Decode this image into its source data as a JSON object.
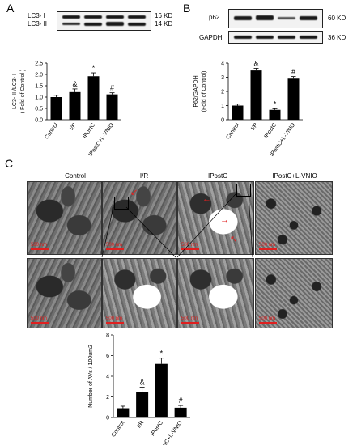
{
  "panels": {
    "a": "A",
    "b": "B",
    "c": "C"
  },
  "blot_a": {
    "rows": [
      "LC3- I",
      "LC3- II"
    ],
    "sizes": [
      "16 KD",
      "14 KD"
    ]
  },
  "blot_b": {
    "rows": [
      "p62",
      "GAPDH"
    ],
    "sizes": [
      "60 KD",
      "36 KD"
    ]
  },
  "em": {
    "columns": [
      "Control",
      "I/R",
      "IPostC",
      "IPostC+L-VNIO"
    ],
    "scale_label": "500 nm"
  },
  "chart_data": [
    {
      "id": "chart-a",
      "type": "bar",
      "categories": [
        "Control",
        "I/R",
        "IPostC",
        "IPostC+L-VNIO"
      ],
      "values": [
        1.0,
        1.22,
        1.92,
        1.12
      ],
      "errors": [
        0.08,
        0.14,
        0.15,
        0.07
      ],
      "markers": [
        "",
        "&",
        "*",
        "#"
      ],
      "ylabel": "LC3- II /LC3- I",
      "ylabel2": "( Fold of Control )",
      "ylim": [
        0,
        2.5
      ],
      "yticks": [
        "0.0",
        "0.5",
        "1.0",
        "1.5",
        "2.0",
        "2.5"
      ],
      "bar_color": "#000000"
    },
    {
      "id": "chart-b",
      "type": "bar",
      "categories": [
        "Control",
        "I/R",
        "IPostC",
        "IPostC+L-VNIO"
      ],
      "values": [
        1.0,
        3.48,
        0.7,
        2.9
      ],
      "errors": [
        0.1,
        0.15,
        0.08,
        0.15
      ],
      "markers": [
        "",
        "&",
        "*",
        "#"
      ],
      "ylabel": "P62/GAPDH",
      "ylabel2": "(Fold of Control)",
      "ylim": [
        0,
        4
      ],
      "yticks": [
        "0",
        "1",
        "2",
        "3",
        "4"
      ],
      "bar_color": "#000000"
    },
    {
      "id": "chart-c",
      "type": "bar",
      "categories": [
        "Control",
        "I/R",
        "IPostC",
        "IPostC+L-VNIO"
      ],
      "values": [
        0.9,
        2.5,
        5.2,
        0.95
      ],
      "errors": [
        0.2,
        0.45,
        0.55,
        0.22
      ],
      "markers": [
        "",
        "&",
        "*",
        "#"
      ],
      "ylabel": "Number of AVs / 100um2",
      "ylabel2": "",
      "ylim": [
        0,
        8
      ],
      "yticks": [
        "0",
        "2",
        "4",
        "6",
        "8"
      ],
      "bar_color": "#000000"
    }
  ]
}
